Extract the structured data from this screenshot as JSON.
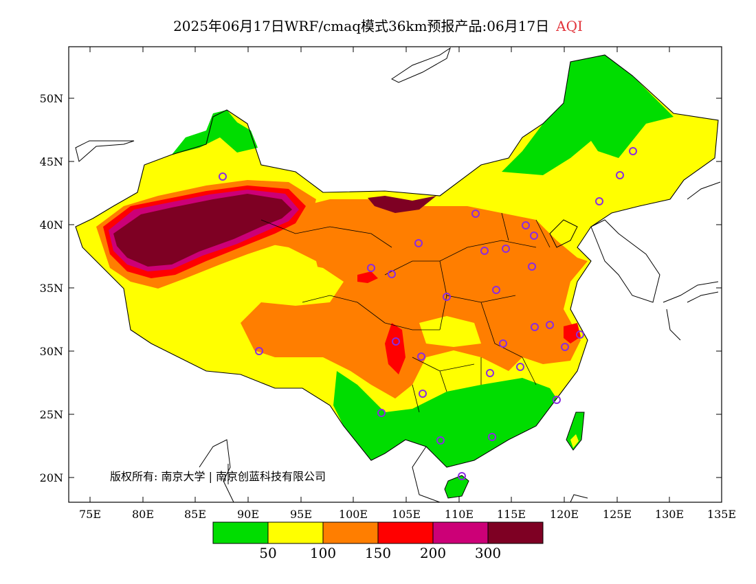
{
  "title": {
    "main": "2025年06月17日WRF/cmaq模式36km预报产品:06月17日",
    "product": "AQI"
  },
  "map": {
    "lat_labels": [
      "50N",
      "45N",
      "40N",
      "35N",
      "30N",
      "25N",
      "20N"
    ],
    "lon_labels": [
      "75E",
      "80E",
      "85E",
      "90E",
      "95E",
      "100E",
      "105E",
      "110E",
      "115E",
      "120E",
      "125E",
      "130E",
      "135E"
    ],
    "copyright": "版权所有: 南京大学 | 南京创蓝科技有限公司"
  },
  "legend": {
    "colors": [
      "#00dd00",
      "#ffff00",
      "#ff7e00",
      "#ff0000",
      "#cc0077",
      "#7e0023"
    ],
    "labels": [
      "50",
      "100",
      "150",
      "200",
      "300"
    ]
  },
  "colors": {
    "green": "#00dd00",
    "yellow": "#ffff00",
    "orange": "#ff7e00",
    "red": "#ff0000",
    "purple": "#cc0077",
    "maroon": "#7e0023",
    "city_marker": "#8a2be2"
  }
}
